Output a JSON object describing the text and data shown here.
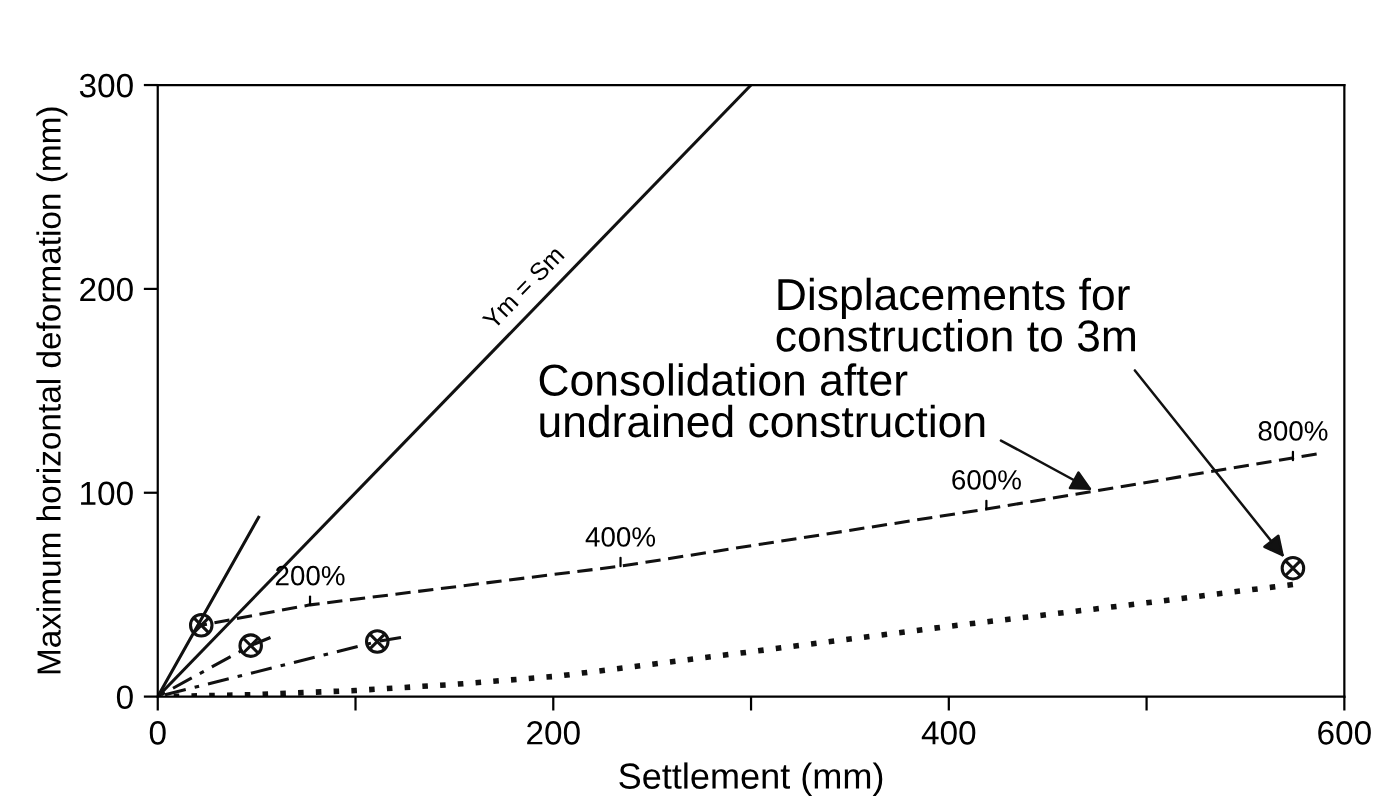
{
  "chart_data": {
    "type": "line",
    "xlabel": "Settlement (mm)",
    "ylabel": "Maximum horizontal deformation (mm)",
    "xlim": [
      0,
      600
    ],
    "xticks": [
      0,
      {
        "value": 100,
        "label": null
      },
      200,
      {
        "value": 300,
        "label": null
      },
      400,
      {
        "value": 500,
        "label": null
      },
      600
    ],
    "ylim": [
      0,
      300
    ],
    "yticks": [
      0,
      100,
      200,
      300
    ],
    "grid": false,
    "legend": false,
    "series": [
      {
        "color": "#111111",
        "line_style": "solid",
        "marker": "none",
        "x": [
          0,
          300
        ],
        "values": [
          0,
          300
        ]
      },
      {
        "color": "#111111",
        "line_style": "solid",
        "marker": "none",
        "x": [
          0,
          51
        ],
        "values": [
          0,
          88
        ]
      },
      {
        "color": "#111111",
        "line_style": "dashed",
        "marker": "none",
        "x": [
          22,
          77,
          234,
          419,
          586
        ],
        "values": [
          35,
          45,
          64,
          92,
          119
        ]
      },
      {
        "color": "#111111",
        "line_style": "dashdot",
        "marker": "none",
        "x": [
          0,
          47,
          57
        ],
        "values": [
          0,
          25,
          29
        ]
      },
      {
        "color": "#111111",
        "line_style": "dashdot",
        "marker": "none",
        "x": [
          0,
          111,
          123
        ],
        "values": [
          0,
          27,
          29
        ]
      },
      {
        "color": "#111111",
        "line_style": "dotted",
        "marker": "none",
        "x": [
          0,
          50,
          100,
          150,
          202,
          300,
          396,
          500,
          574
        ],
        "values": [
          0,
          1,
          3,
          6,
          10,
          22,
          34,
          46,
          55
        ]
      },
      {
        "type": "scatter",
        "color": "#111111",
        "x": [
          22,
          47,
          111,
          574
        ],
        "values": [
          35,
          25,
          27,
          63
        ]
      }
    ],
    "annotations": [
      {
        "text": "Ym = Sm",
        "x": 190,
        "y": 190
      },
      {
        "text": "200%",
        "x": 77,
        "y": 45
      },
      {
        "text": "400%",
        "x": 234,
        "y": 64
      },
      {
        "text": "600%",
        "x": 419,
        "y": 92
      },
      {
        "text": "800%",
        "x": 574,
        "y": 116
      },
      {
        "text": "Consolidation after\nundrained construction",
        "x": 475,
        "y": 100
      },
      {
        "text": "Displacements for\nconstruction to 3m",
        "x": 574,
        "y": 63
      }
    ]
  }
}
